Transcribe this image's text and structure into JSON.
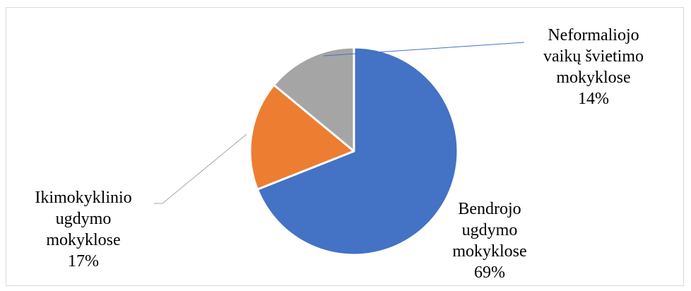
{
  "chart_data": {
    "type": "pie",
    "title": "",
    "slices": [
      {
        "label": "Bendrojo ugdymo mokyklose",
        "lines": [
          "Bendrojo",
          "ugdymo",
          "mokyklose"
        ],
        "value": 69,
        "value_label": "69%",
        "color": "#4472C4"
      },
      {
        "label": "Ikimokyklinio ugdymo mokyklose",
        "lines": [
          "Ikimokyklinio",
          "ugdymo",
          "mokyklose"
        ],
        "value": 17,
        "value_label": "17%",
        "color": "#ED7D31"
      },
      {
        "label": "Neformaliojo vaikų švietimo mokyklose",
        "lines": [
          "Neformaliojo",
          "vaikų švietimo",
          "mokyklose"
        ],
        "value": 14,
        "value_label": "14%",
        "color": "#A5A5A5"
      }
    ],
    "start_angle": "12 o'clock",
    "direction": "clockwise",
    "legend": "none",
    "data_labels": "outside with leader lines"
  }
}
